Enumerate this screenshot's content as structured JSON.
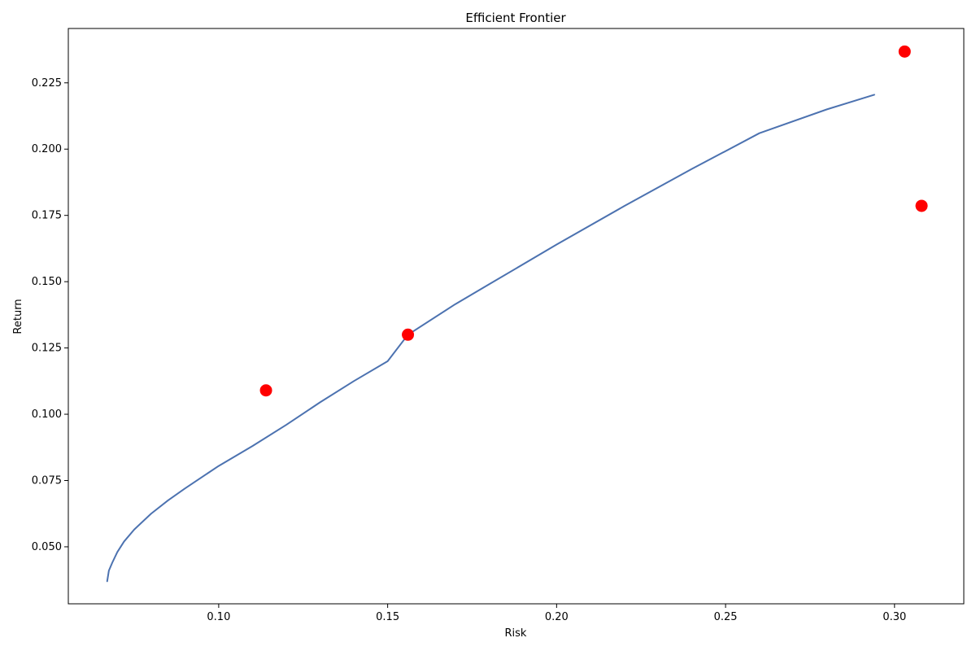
{
  "chart_data": {
    "type": "scatter",
    "title": "Efficient Frontier",
    "xlabel": "Risk",
    "ylabel": "Return",
    "xlim": [
      0.0555,
      0.3205
    ],
    "ylim": [
      0.0285,
      0.2455
    ],
    "xticks": [
      0.1,
      0.15,
      0.2,
      0.25,
      0.3
    ],
    "xtick_labels": [
      "0.10",
      "0.15",
      "0.20",
      "0.25",
      "0.30"
    ],
    "yticks": [
      0.05,
      0.075,
      0.1,
      0.125,
      0.15,
      0.175,
      0.2,
      0.225
    ],
    "ytick_labels": [
      "0.050",
      "0.075",
      "0.100",
      "0.125",
      "0.150",
      "0.175",
      "0.200",
      "0.225"
    ],
    "grid": false,
    "series": [
      {
        "kind": "line",
        "color": "#4c72b0",
        "points": [
          [
            0.067,
            0.037
          ],
          [
            0.0675,
            0.041
          ],
          [
            0.0685,
            0.044
          ],
          [
            0.07,
            0.048
          ],
          [
            0.072,
            0.052
          ],
          [
            0.075,
            0.0565
          ],
          [
            0.08,
            0.0625
          ],
          [
            0.085,
            0.0675
          ],
          [
            0.09,
            0.072
          ],
          [
            0.1,
            0.0805
          ],
          [
            0.11,
            0.088
          ],
          [
            0.12,
            0.096
          ],
          [
            0.13,
            0.1045
          ],
          [
            0.14,
            0.1125
          ],
          [
            0.15,
            0.12
          ],
          [
            0.156,
            0.13
          ],
          [
            0.17,
            0.1415
          ],
          [
            0.18,
            0.149
          ],
          [
            0.2,
            0.164
          ],
          [
            0.22,
            0.1785
          ],
          [
            0.24,
            0.1925
          ],
          [
            0.26,
            0.206
          ],
          [
            0.28,
            0.215
          ],
          [
            0.294,
            0.2205
          ]
        ]
      },
      {
        "kind": "scatter",
        "color": "#ff0000",
        "points": [
          [
            0.114,
            0.109
          ],
          [
            0.156,
            0.13
          ],
          [
            0.303,
            0.2368
          ],
          [
            0.308,
            0.1786
          ]
        ]
      }
    ]
  }
}
